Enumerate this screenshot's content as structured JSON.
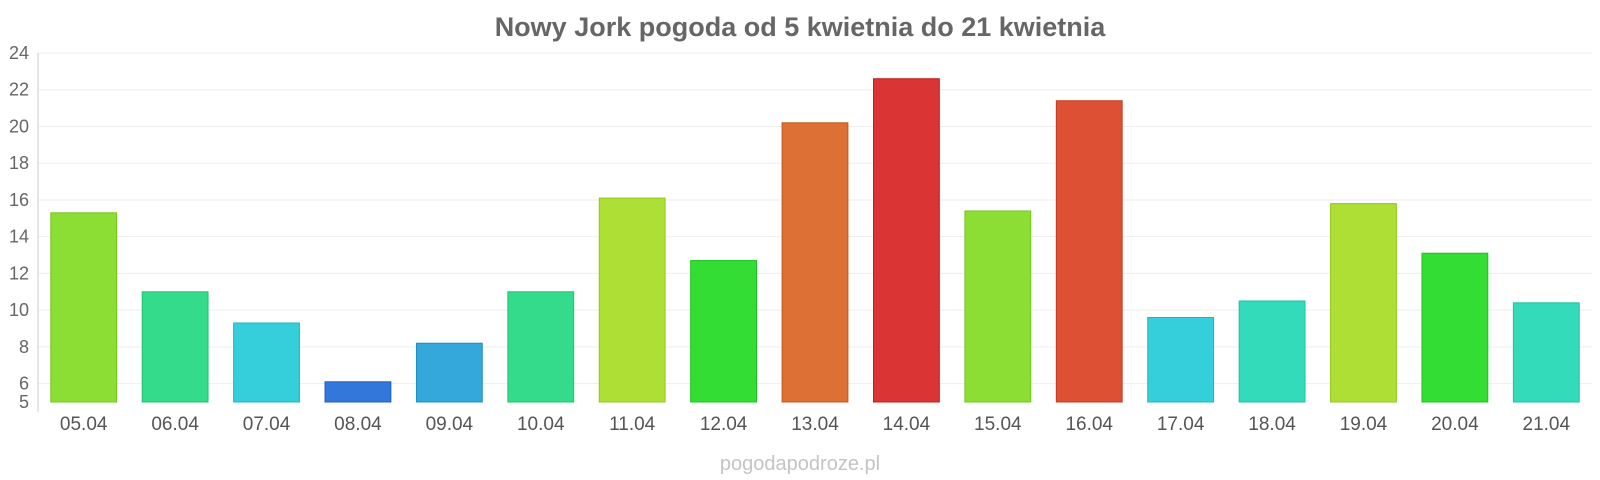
{
  "chart_data": {
    "type": "bar",
    "title": "Nowy Jork pogoda od 5 kwietnia do 21 kwietnia",
    "xlabel": "",
    "ylabel": "",
    "ylim": [
      5,
      24
    ],
    "yticks": [
      5,
      6,
      8,
      10,
      12,
      14,
      16,
      18,
      20,
      22,
      24
    ],
    "grid": true,
    "categories": [
      "05.04",
      "06.04",
      "07.04",
      "08.04",
      "09.04",
      "10.04",
      "11.04",
      "12.04",
      "13.04",
      "14.04",
      "15.04",
      "16.04",
      "17.04",
      "18.04",
      "19.04",
      "20.04",
      "21.04"
    ],
    "values": [
      15.3,
      11.0,
      9.3,
      6.1,
      8.2,
      11.0,
      16.1,
      12.7,
      20.2,
      22.6,
      15.4,
      21.4,
      9.6,
      10.5,
      15.8,
      13.1,
      10.4
    ],
    "colors": [
      "#8cde34",
      "#34db8a",
      "#34cfdb",
      "#3477db",
      "#34a8db",
      "#34db8a",
      "#addf34",
      "#34dd34",
      "#dd7034",
      "#db3434",
      "#8cde34",
      "#dd5034",
      "#34cfdb",
      "#34dbbb",
      "#addf34",
      "#34dd34",
      "#34dbbb"
    ]
  },
  "watermark": "pogodapodroze.pl"
}
